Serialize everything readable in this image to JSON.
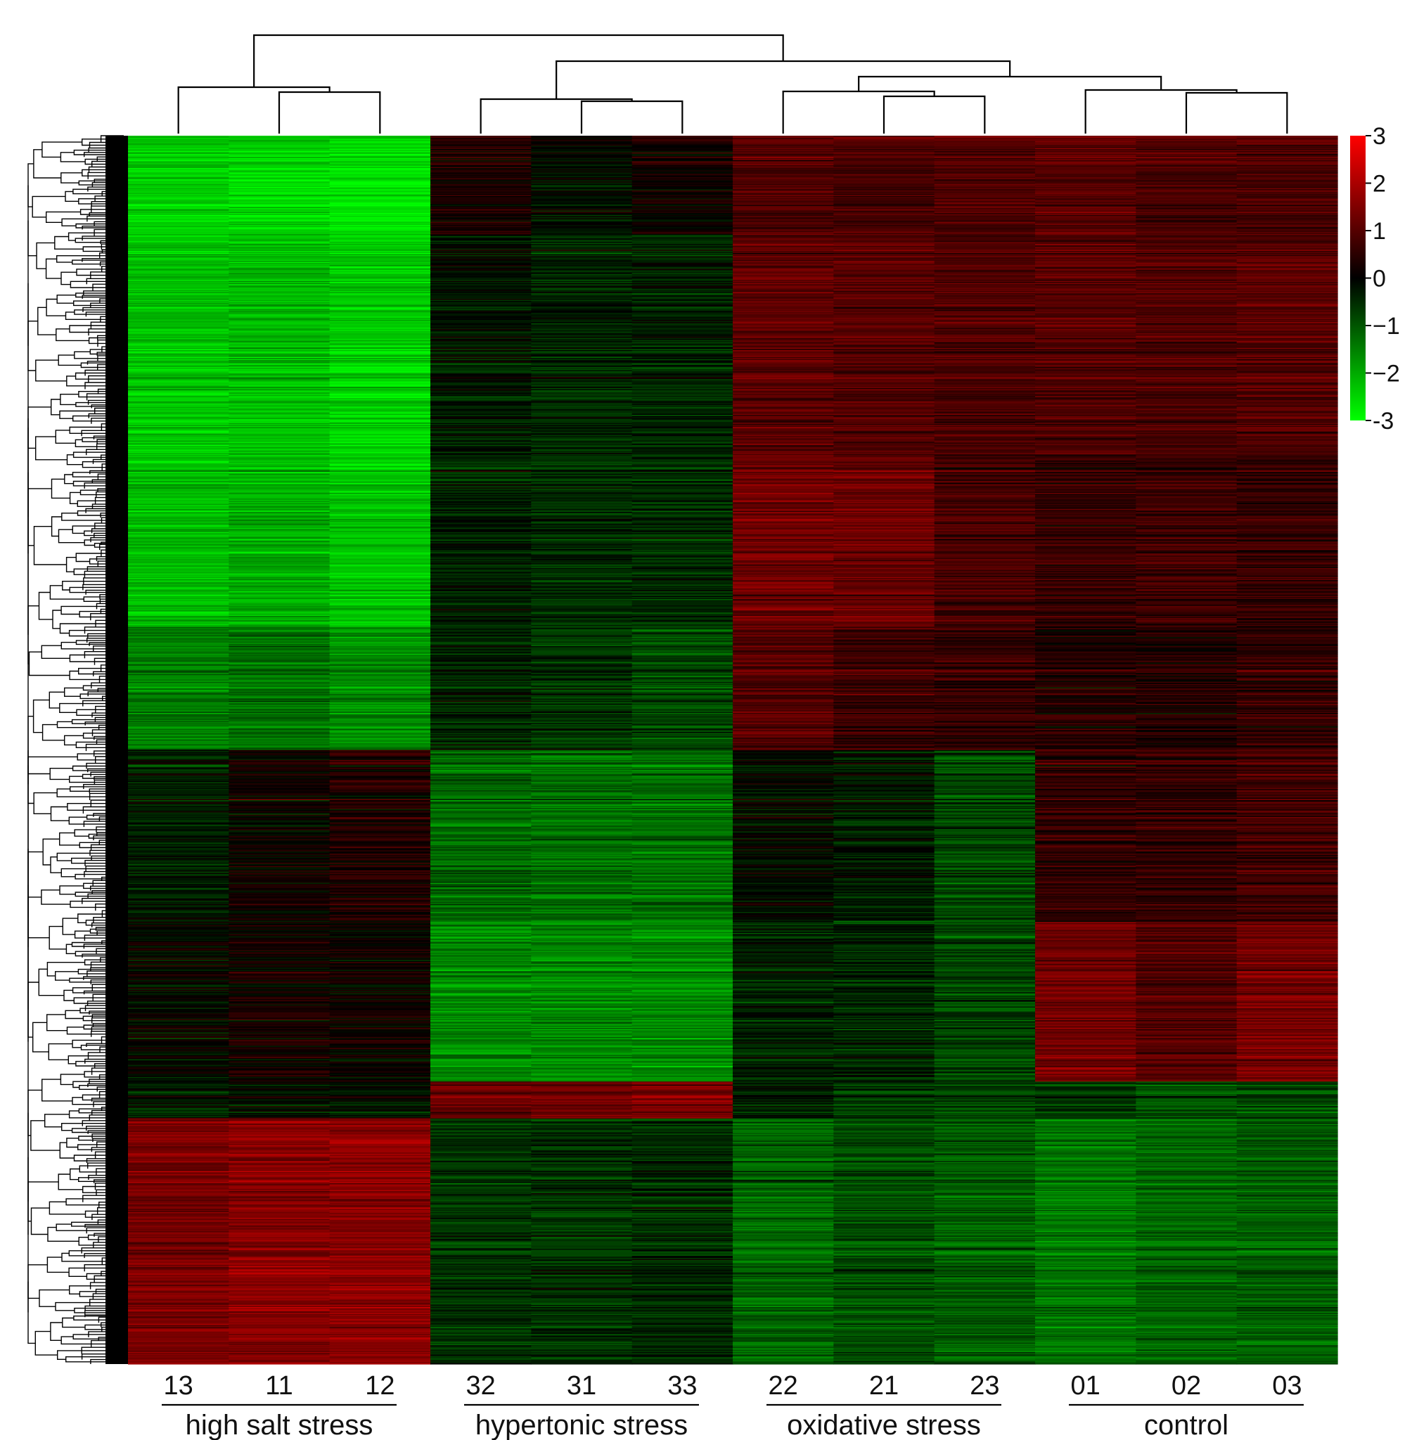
{
  "chart_data": {
    "type": "heatmap",
    "title": "",
    "xlabel": "",
    "ylabel": "",
    "columns": [
      "13",
      "11",
      "12",
      "32",
      "31",
      "33",
      "22",
      "21",
      "23",
      "01",
      "02",
      "03"
    ],
    "groups": [
      {
        "label": "high salt stress",
        "columns": [
          "13",
          "11",
          "12"
        ]
      },
      {
        "label": "hypertonic stress",
        "columns": [
          "32",
          "31",
          "33"
        ]
      },
      {
        "label": "oxidative stress",
        "columns": [
          "22",
          "21",
          "23"
        ]
      },
      {
        "label": "control",
        "columns": [
          "01",
          "02",
          "03"
        ]
      }
    ],
    "colorbar": {
      "min": -3,
      "max": 3,
      "ticks": [
        "3",
        "2",
        "1",
        "0",
        "−1",
        "−2",
        "-3"
      ],
      "colors": {
        "low": "#00ff00",
        "mid": "#000000",
        "high": "#ff0000"
      }
    },
    "row_clusters_mean_z": [
      {
        "fraction": 0.08,
        "values": [
          -2.4,
          -2.5,
          -2.6,
          0.4,
          -0.1,
          0.2,
          1.0,
          0.9,
          0.9,
          1.1,
          0.9,
          0.9
        ]
      },
      {
        "fraction": 0.18,
        "values": [
          -2.3,
          -2.2,
          -2.4,
          -0.2,
          -0.4,
          -0.4,
          1.1,
          1.0,
          0.9,
          1.0,
          0.9,
          1.0
        ]
      },
      {
        "fraction": 0.14,
        "values": [
          -2.2,
          -2.1,
          -2.3,
          -0.4,
          -0.5,
          -0.5,
          1.3,
          1.2,
          0.8,
          0.6,
          0.7,
          0.6
        ]
      },
      {
        "fraction": 0.1,
        "values": [
          -1.4,
          -1.3,
          -1.6,
          -0.4,
          -0.6,
          -0.8,
          1.0,
          0.7,
          0.6,
          0.4,
          0.4,
          0.6
        ]
      },
      {
        "fraction": 0.14,
        "values": [
          -0.3,
          0.1,
          0.4,
          -1.2,
          -1.3,
          -1.3,
          -0.1,
          -0.3,
          -0.8,
          0.6,
          0.6,
          0.8
        ]
      },
      {
        "fraction": 0.13,
        "values": [
          0.0,
          0.2,
          0.1,
          -1.6,
          -1.6,
          -1.6,
          -0.4,
          -0.4,
          -0.8,
          1.3,
          1.0,
          1.4
        ]
      },
      {
        "fraction": 0.03,
        "values": [
          -0.3,
          -0.1,
          -0.2,
          1.2,
          1.3,
          1.4,
          -0.3,
          -0.6,
          -0.7,
          -0.6,
          -0.9,
          -0.8
        ]
      },
      {
        "fraction": 0.2,
        "values": [
          1.4,
          1.6,
          1.6,
          -0.6,
          -0.6,
          -0.5,
          -1.2,
          -0.9,
          -1.1,
          -1.4,
          -1.2,
          -1.1
        ]
      }
    ]
  }
}
